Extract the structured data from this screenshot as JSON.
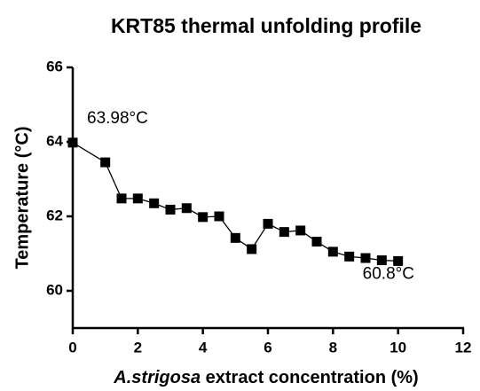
{
  "chart_data": {
    "type": "line",
    "title": "KRT85 thermal unfolding profile",
    "ylabel": "Temperature (°C)",
    "xlabel": [
      {
        "text": "A.strigosa",
        "italic": true
      },
      {
        "text": " extract concentration (%)",
        "italic": false
      }
    ],
    "x": [
      0,
      1,
      1.5,
      2,
      2.5,
      3,
      3.5,
      4,
      4.5,
      5,
      5.5,
      6,
      6.5,
      7,
      7.5,
      8,
      8.5,
      9,
      9.5,
      10
    ],
    "series": [
      {
        "color": "#000000",
        "values": [
          63.98,
          63.45,
          62.48,
          62.48,
          62.35,
          62.18,
          62.22,
          61.98,
          62.0,
          61.42,
          61.12,
          61.8,
          61.58,
          61.62,
          61.32,
          61.05,
          60.92,
          60.88,
          60.82,
          60.8
        ]
      }
    ],
    "xlim": [
      0,
      12
    ],
    "xticks": [
      0,
      2,
      4,
      6,
      8,
      10,
      12
    ],
    "ylim": [
      59,
      66
    ],
    "yticks": [
      60,
      62,
      64,
      66
    ],
    "annotations": [
      {
        "text": "63.98°C",
        "x": 0,
        "y": 63.98
      },
      {
        "text": "60.8°C",
        "x": 10,
        "y": 60.8
      }
    ]
  }
}
